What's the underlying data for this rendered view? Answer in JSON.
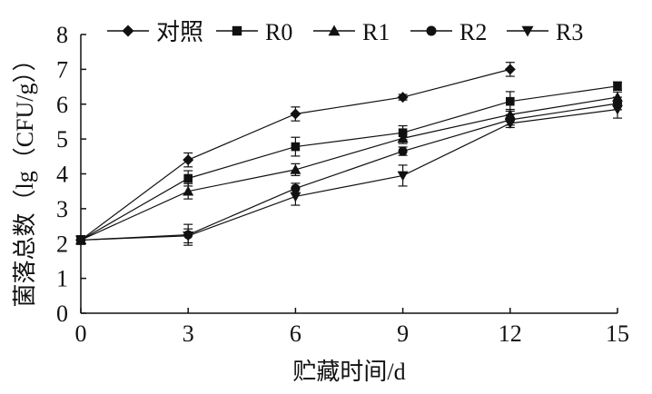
{
  "chart_data": {
    "type": "line",
    "xlabel": "贮藏时间/d",
    "ylabel": "菌落总数（lg（CFU/g））",
    "xlim": [
      0,
      15
    ],
    "ylim": [
      0,
      8
    ],
    "xticks": [
      0,
      3,
      6,
      9,
      12,
      15
    ],
    "yticks": [
      0,
      1,
      2,
      3,
      4,
      5,
      6,
      7,
      8
    ],
    "grid": false,
    "legend_position": "top",
    "x": [
      0,
      3,
      6,
      9,
      12,
      15
    ],
    "series": [
      {
        "name": "对照",
        "marker": "diamond",
        "values": [
          2.1,
          4.4,
          5.72,
          6.2,
          7.0,
          null
        ],
        "errors": [
          0.12,
          0.2,
          0.2,
          0.08,
          0.2,
          null
        ]
      },
      {
        "name": "R0",
        "marker": "square",
        "values": [
          2.1,
          3.87,
          4.78,
          5.18,
          6.08,
          6.52
        ],
        "errors": [
          0.12,
          0.22,
          0.27,
          0.2,
          0.28,
          0.12
        ]
      },
      {
        "name": "R1",
        "marker": "triangle-up",
        "values": [
          2.1,
          3.5,
          4.12,
          5.02,
          5.7,
          6.2
        ],
        "errors": [
          0.12,
          0.22,
          0.17,
          0.15,
          0.15,
          0.15
        ]
      },
      {
        "name": "R2",
        "marker": "circle",
        "values": [
          2.1,
          2.25,
          3.58,
          4.65,
          5.55,
          6.02
        ],
        "errors": [
          0.12,
          0.3,
          0.15,
          0.12,
          0.15,
          0.18
        ]
      },
      {
        "name": "R3",
        "marker": "triangle-down",
        "values": [
          2.1,
          2.22,
          3.35,
          3.95,
          5.45,
          5.85
        ],
        "errors": [
          0.12,
          0.2,
          0.25,
          0.3,
          0.12,
          0.25
        ]
      }
    ]
  }
}
